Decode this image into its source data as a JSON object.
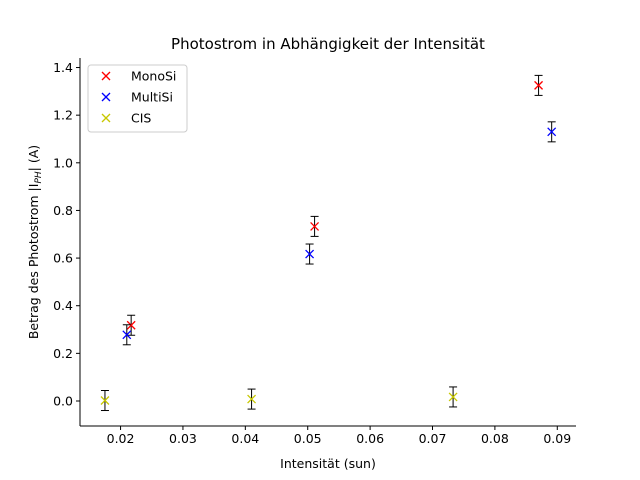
{
  "chart_data": {
    "type": "scatter",
    "title": "Photostrom in Abhängigkeit der Intensität",
    "xlabel": "Intensität (sun)",
    "ylabel": "Betrag des Photostrom |I",
    "ylabel_sub": "PH",
    "ylabel_suffix": "| (A)",
    "xlim": [
      0.0135,
      0.093
    ],
    "ylim": [
      -0.105,
      1.44
    ],
    "x_ticks": [
      0.02,
      0.03,
      0.04,
      0.05,
      0.06,
      0.07,
      0.08,
      0.09
    ],
    "x_tick_labels": [
      "0.02",
      "0.03",
      "0.04",
      "0.05",
      "0.06",
      "0.07",
      "0.08",
      "0.09"
    ],
    "y_ticks": [
      0.0,
      0.2,
      0.4,
      0.6,
      0.8,
      1.0,
      1.2,
      1.4
    ],
    "y_tick_labels": [
      "0.0",
      "0.2",
      "0.4",
      "0.6",
      "0.8",
      "1.0",
      "1.2",
      "1.4"
    ],
    "grid": false,
    "legend_position": "top-left",
    "series": [
      {
        "name": "MonoSi",
        "color": "#ff0000",
        "marker": "x",
        "points": [
          {
            "x": 0.0217,
            "y": 0.318,
            "err": 0.042
          },
          {
            "x": 0.0511,
            "y": 0.733,
            "err": 0.042
          },
          {
            "x": 0.087,
            "y": 1.325,
            "err": 0.042
          }
        ]
      },
      {
        "name": "MultiSi",
        "color": "#0000ff",
        "marker": "x",
        "points": [
          {
            "x": 0.021,
            "y": 0.278,
            "err": 0.042
          },
          {
            "x": 0.0503,
            "y": 0.617,
            "err": 0.042
          },
          {
            "x": 0.0891,
            "y": 1.13,
            "err": 0.042
          }
        ]
      },
      {
        "name": "CIS",
        "color": "#c8c800",
        "marker": "x",
        "points": [
          {
            "x": 0.0175,
            "y": 0.002,
            "err": 0.042
          },
          {
            "x": 0.041,
            "y": 0.008,
            "err": 0.042
          },
          {
            "x": 0.0733,
            "y": 0.017,
            "err": 0.042
          }
        ]
      }
    ]
  }
}
